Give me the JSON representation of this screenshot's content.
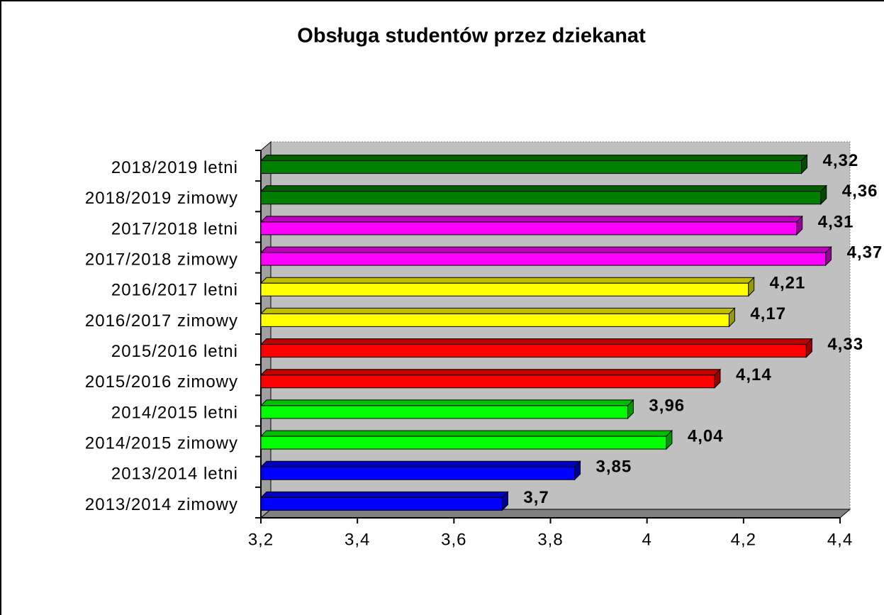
{
  "chart_data": {
    "type": "bar",
    "orientation": "horizontal",
    "title": "Obsługa studentów przez dziekanat",
    "categories": [
      "2013/2014 zimowy",
      "2013/2014 letni",
      "2014/2015 zimowy",
      "2014/2015 letni",
      "2015/2016 zimowy",
      "2015/2016 letni",
      "2016/2017 zimowy",
      "2016/2017 letni",
      "2017/2018 zimowy",
      "2017/2018 letni",
      "2018/2019 zimowy",
      "2018/2019 letni"
    ],
    "values": [
      3.7,
      3.85,
      4.04,
      3.96,
      4.14,
      4.33,
      4.17,
      4.21,
      4.37,
      4.31,
      4.36,
      4.32
    ],
    "value_labels": [
      "3,7",
      "3,85",
      "4,04",
      "3,96",
      "4,14",
      "4,33",
      "4,17",
      "4,21",
      "4,37",
      "4,31",
      "4,36",
      "4,32"
    ],
    "colors": [
      "#0000ff",
      "#0000ff",
      "#00ff00",
      "#00ff00",
      "#ff0000",
      "#ff0000",
      "#ffff00",
      "#ffff00",
      "#ff00ff",
      "#ff00ff",
      "#008000",
      "#008000"
    ],
    "xlim": [
      3.2,
      4.4
    ],
    "xticks": [
      {
        "value": 3.2,
        "label": "3,2"
      },
      {
        "value": 3.4,
        "label": "3,4"
      },
      {
        "value": 3.6,
        "label": "3,6"
      },
      {
        "value": 3.8,
        "label": "3,8"
      },
      4,
      {
        "value": 4.2,
        "label": "4,2"
      },
      {
        "value": 4.4,
        "label": "4,4"
      }
    ],
    "grid": false
  }
}
